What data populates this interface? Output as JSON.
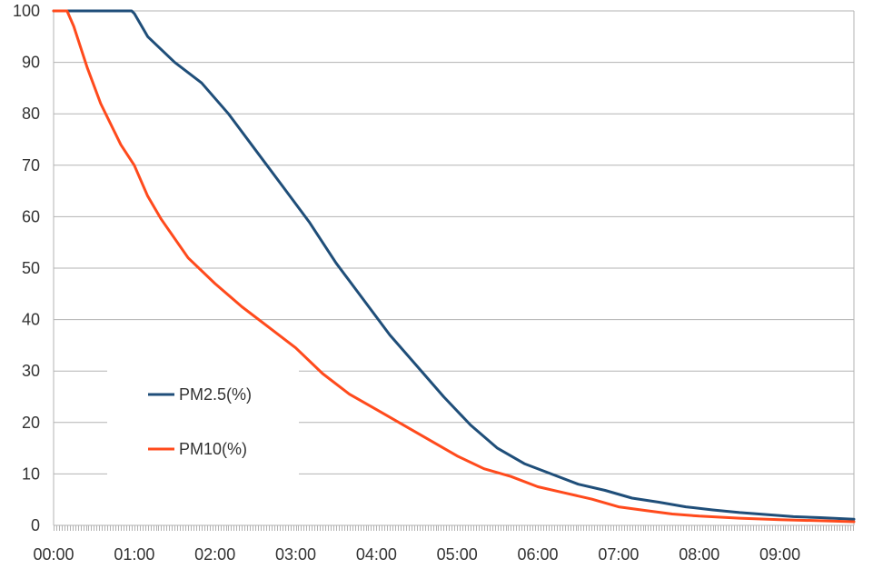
{
  "chart_data": {
    "type": "line",
    "title": "",
    "xlabel": "",
    "ylabel": "",
    "ylim": [
      0,
      100
    ],
    "xlim_minutes": [
      0,
      595
    ],
    "grid": true,
    "legend_position": "left-center",
    "y_ticks": [
      "0",
      "10",
      "20",
      "30",
      "40",
      "50",
      "60",
      "70",
      "80",
      "90",
      "100"
    ],
    "x_ticks": [
      "00:00",
      "01:00",
      "02:00",
      "03:00",
      "04:00",
      "05:00",
      "06:00",
      "07:00",
      "08:00",
      "09:00"
    ],
    "series": [
      {
        "name": "PM2.5(%)",
        "color": "#1f4e79",
        "points": [
          [
            "00:00",
            100
          ],
          [
            "00:30",
            100
          ],
          [
            "00:58",
            100
          ],
          [
            "01:00",
            99.5
          ],
          [
            "01:10",
            95
          ],
          [
            "01:30",
            90
          ],
          [
            "01:50",
            86
          ],
          [
            "02:10",
            80
          ],
          [
            "02:30",
            73
          ],
          [
            "02:50",
            66
          ],
          [
            "03:10",
            59
          ],
          [
            "03:30",
            51
          ],
          [
            "03:50",
            44
          ],
          [
            "04:10",
            37
          ],
          [
            "04:30",
            31
          ],
          [
            "04:50",
            25
          ],
          [
            "05:10",
            19.5
          ],
          [
            "05:30",
            15
          ],
          [
            "05:50",
            12
          ],
          [
            "06:10",
            10
          ],
          [
            "06:30",
            8
          ],
          [
            "06:50",
            6.8
          ],
          [
            "07:10",
            5.3
          ],
          [
            "07:30",
            4.5
          ],
          [
            "07:50",
            3.6
          ],
          [
            "08:10",
            3.0
          ],
          [
            "08:30",
            2.5
          ],
          [
            "08:50",
            2.1
          ],
          [
            "09:10",
            1.7
          ],
          [
            "09:30",
            1.5
          ],
          [
            "09:55",
            1.2
          ]
        ]
      },
      {
        "name": "PM10(%)",
        "color": "#ff4a1c",
        "points": [
          [
            "00:00",
            100
          ],
          [
            "00:10",
            100
          ],
          [
            "00:15",
            97
          ],
          [
            "00:25",
            89
          ],
          [
            "00:35",
            82
          ],
          [
            "00:50",
            74
          ],
          [
            "01:00",
            70
          ],
          [
            "01:10",
            64
          ],
          [
            "01:20",
            59.5
          ],
          [
            "01:40",
            52
          ],
          [
            "02:00",
            47
          ],
          [
            "02:20",
            42.5
          ],
          [
            "02:40",
            38.5
          ],
          [
            "03:00",
            34.5
          ],
          [
            "03:20",
            29.5
          ],
          [
            "03:40",
            25.5
          ],
          [
            "04:00",
            22.5
          ],
          [
            "04:20",
            19.5
          ],
          [
            "04:40",
            16.5
          ],
          [
            "05:00",
            13.5
          ],
          [
            "05:20",
            11
          ],
          [
            "05:40",
            9.5
          ],
          [
            "06:00",
            7.5
          ],
          [
            "06:20",
            6.3
          ],
          [
            "06:40",
            5.1
          ],
          [
            "07:00",
            3.6
          ],
          [
            "07:20",
            2.9
          ],
          [
            "07:40",
            2.2
          ],
          [
            "08:00",
            1.8
          ],
          [
            "08:30",
            1.4
          ],
          [
            "09:00",
            1.1
          ],
          [
            "09:30",
            0.9
          ],
          [
            "09:55",
            0.7
          ]
        ]
      }
    ]
  }
}
